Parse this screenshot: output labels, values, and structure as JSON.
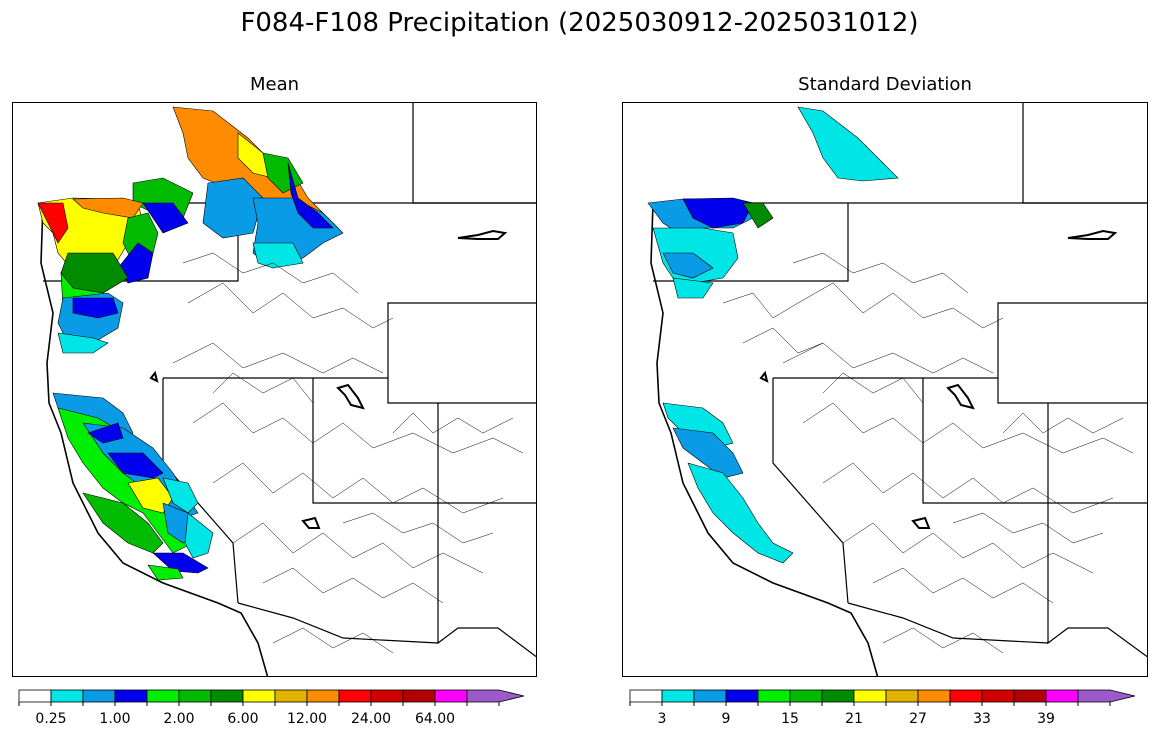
{
  "figure": {
    "title": "F084-F108 Precipitation (2025030912-2025031012)"
  },
  "panels": [
    {
      "title": "Mean",
      "colorbar": {
        "colors": [
          "#ffffff",
          "#00e5e5",
          "#0a9be6",
          "#0000ee",
          "#00ee00",
          "#00bb00",
          "#008b00",
          "#ffff00",
          "#e0b400",
          "#ff8c00",
          "#ff0000",
          "#d40000",
          "#b30000",
          "#ff00ff",
          "#9b59c9"
        ],
        "tick_labels": [
          "0.25",
          "1.00",
          "2.00",
          "6.00",
          "12.00",
          "24.00",
          "64.00"
        ]
      }
    },
    {
      "title": "Standard Deviation",
      "colorbar": {
        "colors": [
          "#ffffff",
          "#00e5e5",
          "#0a9be6",
          "#0000ee",
          "#00ee00",
          "#00bb00",
          "#008b00",
          "#ffff00",
          "#e0b400",
          "#ff8c00",
          "#ff0000",
          "#d40000",
          "#b30000",
          "#ff00ff",
          "#9b59c9"
        ],
        "tick_labels": [
          "3",
          "9",
          "15",
          "21",
          "27",
          "33",
          "39"
        ]
      }
    }
  ]
}
